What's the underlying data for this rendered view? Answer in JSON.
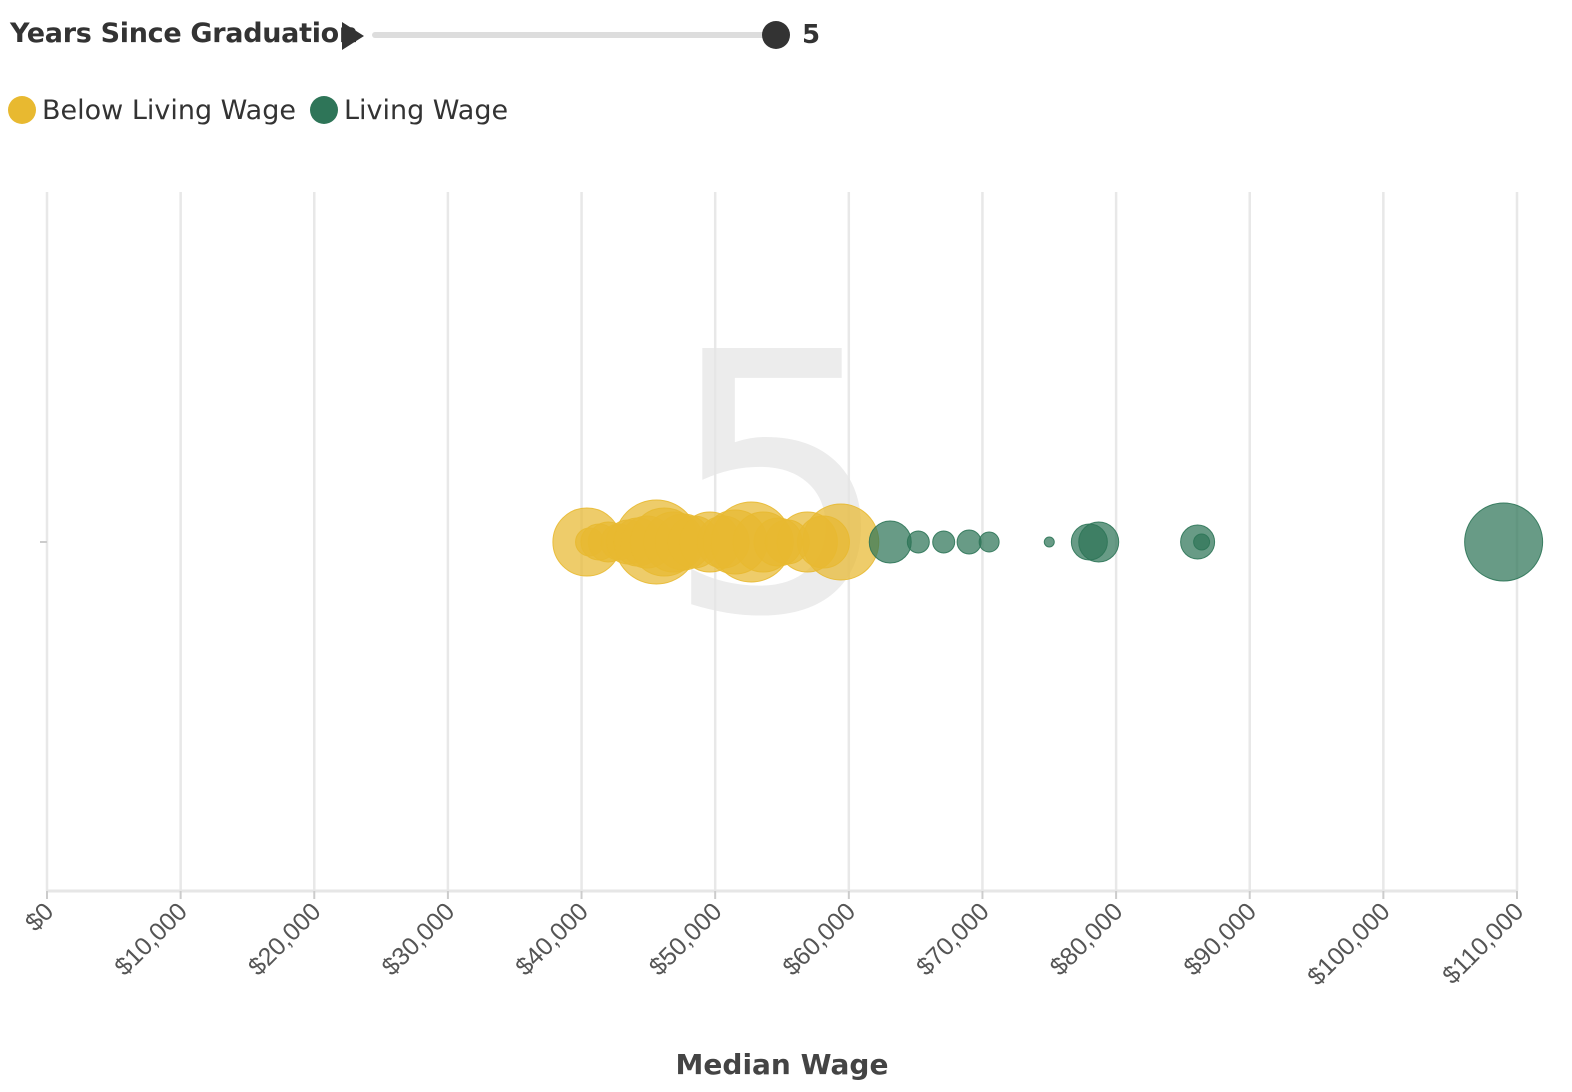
{
  "controls": {
    "slider_title": "Years Since Graduation",
    "slider_value": "5",
    "slider_min": 0,
    "slider_max": 5,
    "play_icon": "play-icon"
  },
  "legend": [
    {
      "label": "Below Living Wage",
      "color": "#e8b930"
    },
    {
      "label": "Living Wage",
      "color": "#2e7558"
    }
  ],
  "chart_data": {
    "type": "scatter",
    "title": "",
    "xlabel": "Median Wage",
    "ylabel": "",
    "xlim": [
      0,
      110000
    ],
    "x_ticks": [
      "$0",
      "$10,000",
      "$20,000",
      "$30,000",
      "$40,000",
      "$50,000",
      "$60,000",
      "$70,000",
      "$80,000",
      "$90,000",
      "$100,000",
      "$110,000"
    ],
    "x_tick_values": [
      0,
      10000,
      20000,
      30000,
      40000,
      50000,
      60000,
      70000,
      80000,
      90000,
      100000,
      110000
    ],
    "grid": true,
    "year_watermark": "5",
    "series": [
      {
        "name": "Below Living Wage",
        "color": "#e8b930",
        "points": [
          {
            "x": 40400,
            "size": 34
          },
          {
            "x": 40600,
            "size": 14
          },
          {
            "x": 41300,
            "size": 18
          },
          {
            "x": 42000,
            "size": 20
          },
          {
            "x": 42800,
            "size": 18
          },
          {
            "x": 43500,
            "size": 22
          },
          {
            "x": 44200,
            "size": 24
          },
          {
            "x": 44900,
            "size": 26
          },
          {
            "x": 45600,
            "size": 42
          },
          {
            "x": 46200,
            "size": 34
          },
          {
            "x": 46900,
            "size": 30
          },
          {
            "x": 47600,
            "size": 28
          },
          {
            "x": 48400,
            "size": 26
          },
          {
            "x": 49600,
            "size": 30
          },
          {
            "x": 50600,
            "size": 26
          },
          {
            "x": 51500,
            "size": 32
          },
          {
            "x": 52700,
            "size": 40
          },
          {
            "x": 53600,
            "size": 30
          },
          {
            "x": 54700,
            "size": 24
          },
          {
            "x": 55400,
            "size": 22
          },
          {
            "x": 56900,
            "size": 30
          },
          {
            "x": 58100,
            "size": 26
          },
          {
            "x": 59400,
            "size": 38
          }
        ]
      },
      {
        "name": "Living Wage",
        "color": "#2e7558",
        "points": [
          {
            "x": 63100,
            "size": 21
          },
          {
            "x": 65200,
            "size": 11
          },
          {
            "x": 67100,
            "size": 11
          },
          {
            "x": 69000,
            "size": 12
          },
          {
            "x": 70500,
            "size": 10
          },
          {
            "x": 75000,
            "size": 5
          },
          {
            "x": 78000,
            "size": 18
          },
          {
            "x": 78700,
            "size": 20
          },
          {
            "x": 86100,
            "size": 17
          },
          {
            "x": 86400,
            "size": 8
          },
          {
            "x": 109000,
            "size": 39
          }
        ]
      }
    ]
  }
}
